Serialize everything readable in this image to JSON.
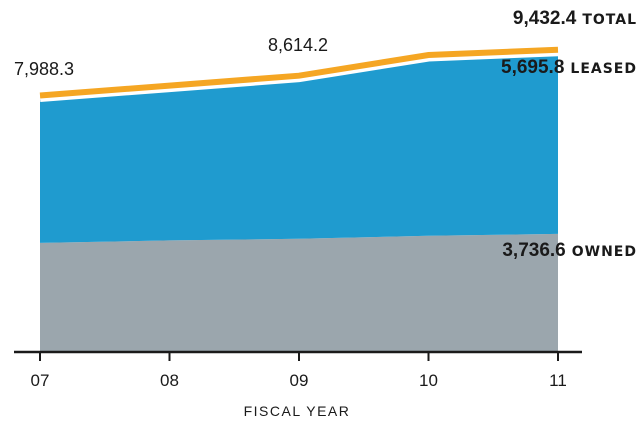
{
  "chart_data": {
    "type": "area",
    "stacked": true,
    "xlabel": "FISCAL YEAR",
    "ylabel": "",
    "ylim": [
      0,
      10250
    ],
    "categories": [
      "07",
      "08",
      "09",
      "10",
      "11"
    ],
    "series": [
      {
        "name": "OWNED",
        "values": [
          3450,
          3530,
          3580,
          3680,
          3736.6
        ],
        "color": "#9ba6ad"
      },
      {
        "name": "LEASED",
        "values": [
          4538.3,
          4770,
          5034.2,
          5590,
          5695.8
        ],
        "color": "#1f9bcf"
      }
    ],
    "total": {
      "name": "TOTAL",
      "values": [
        7988.3,
        8300,
        8614.2,
        9270,
        9432.4
      ],
      "color": "#f5a623"
    },
    "annotations": [
      {
        "text": "7,988.3",
        "category": "07"
      },
      {
        "text": "8,614.2",
        "category": "09"
      }
    ],
    "end_labels": [
      {
        "value": "9,432.4",
        "name": "TOTAL"
      },
      {
        "value": "5,695.8",
        "name": "LEASED"
      },
      {
        "value": "3,736.6",
        "name": "OWNED"
      }
    ],
    "grid": false,
    "legend": "none"
  }
}
